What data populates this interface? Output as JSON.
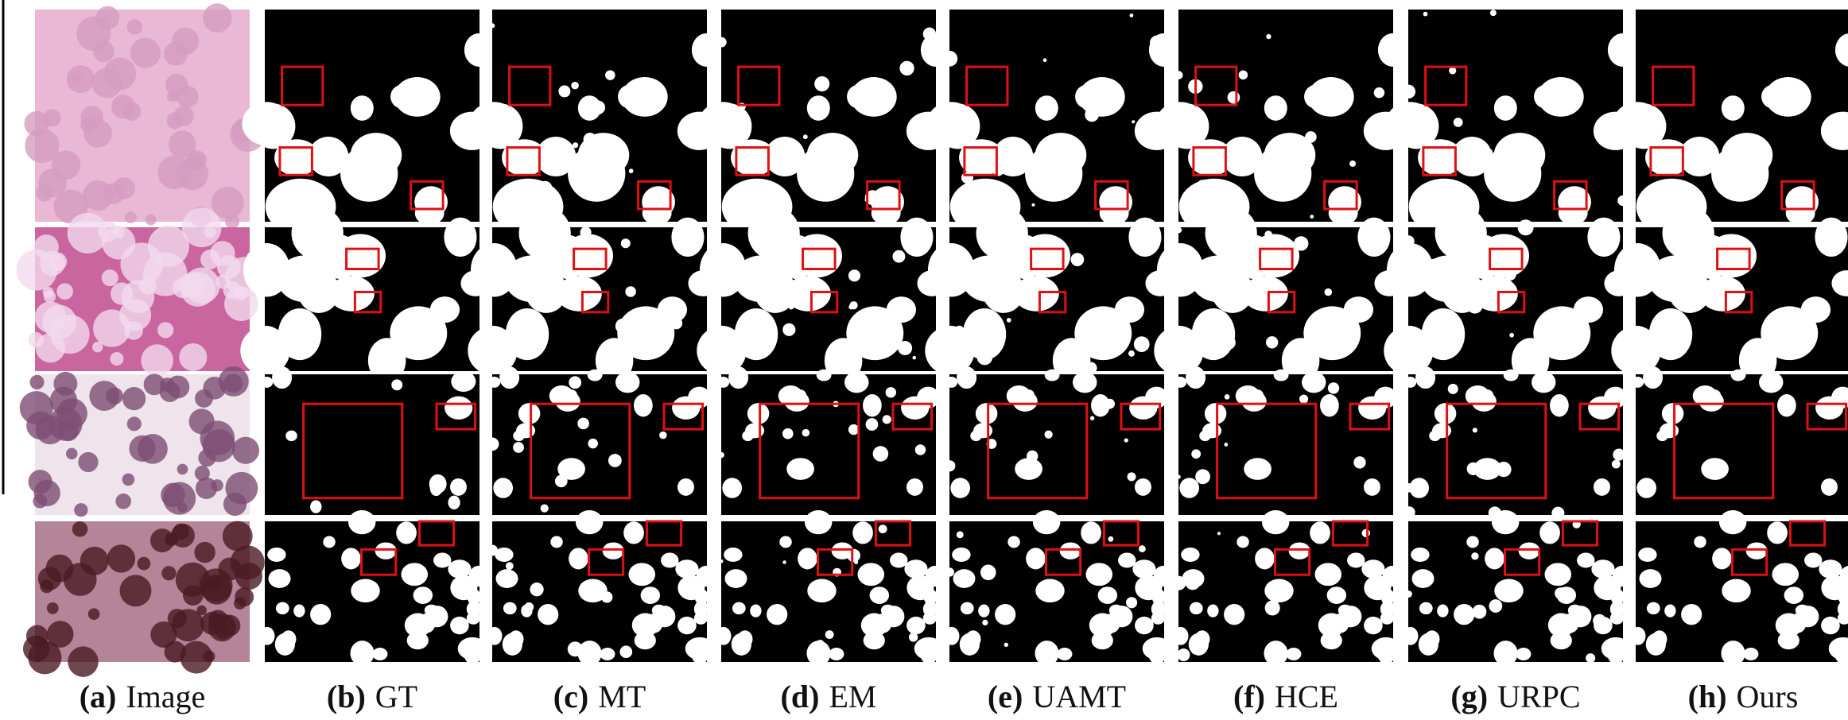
{
  "columns": [
    {
      "tag": "(a)",
      "label": "Image"
    },
    {
      "tag": "(b)",
      "label": "GT"
    },
    {
      "tag": "(c)",
      "label": "MT"
    },
    {
      "tag": "(d)",
      "label": "EM"
    },
    {
      "tag": "(e)",
      "label": "UAMT"
    },
    {
      "tag": "(f)",
      "label": "HCE"
    },
    {
      "tag": "(g)",
      "label": "URPC"
    },
    {
      "tag": "(h)",
      "label": "Ours"
    }
  ]
}
